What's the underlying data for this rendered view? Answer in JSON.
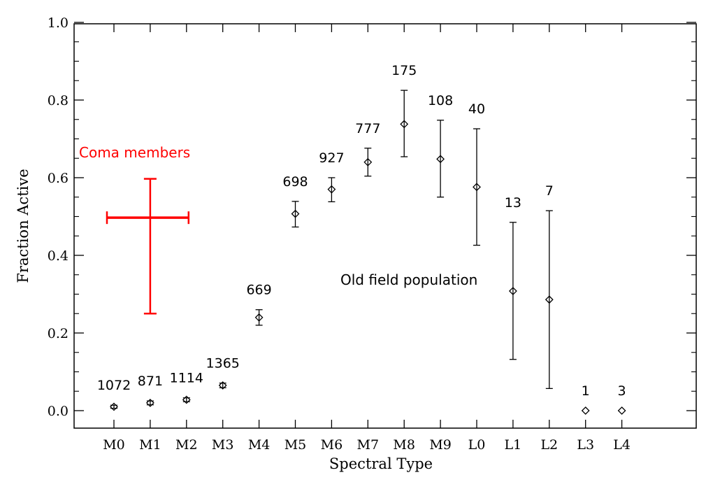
{
  "chart_data": {
    "type": "scatter",
    "xlabel": "Spectral Type",
    "ylabel": "Fraction Active",
    "ylim": [
      0.0,
      1.0
    ],
    "y_ticks": [
      "0.0",
      "0.2",
      "0.4",
      "0.6",
      "0.8",
      "1.0"
    ],
    "categories": [
      "M0",
      "M1",
      "M2",
      "M3",
      "M4",
      "M5",
      "M6",
      "M7",
      "M8",
      "M9",
      "L0",
      "L1",
      "L2",
      "L3",
      "L4"
    ],
    "series": [
      {
        "values": [
          0.01,
          0.02,
          0.028,
          0.065,
          0.24,
          0.507,
          0.57,
          0.64,
          0.738,
          0.648,
          0.576,
          0.308,
          0.286,
          0.0,
          0.0
        ],
        "err_low": [
          0.004,
          0.005,
          0.005,
          0.006,
          0.02,
          0.034,
          0.032,
          0.036,
          0.084,
          0.098,
          0.15,
          0.176,
          0.229,
          0.0,
          0.0
        ],
        "err_high": [
          0.004,
          0.005,
          0.005,
          0.006,
          0.02,
          0.032,
          0.03,
          0.036,
          0.087,
          0.1,
          0.15,
          0.177,
          0.229,
          0.0,
          0.0
        ],
        "counts": [
          "1072",
          "871",
          "1114",
          "1365",
          "669",
          "698",
          "927",
          "777",
          "175",
          "108",
          "40",
          "13",
          "7",
          "1",
          "3"
        ],
        "color": "#000000"
      },
      {
        "x_center": 1,
        "x_range": [
          0,
          2
        ],
        "y_center": 0.497,
        "y_range": [
          0.25,
          0.597
        ],
        "color": "#ff0000"
      }
    ],
    "annotations": [
      {
        "text": "Coma members",
        "color": "#ff0000"
      },
      {
        "text": "Old field population",
        "color": "#000000"
      }
    ],
    "grid": false
  }
}
